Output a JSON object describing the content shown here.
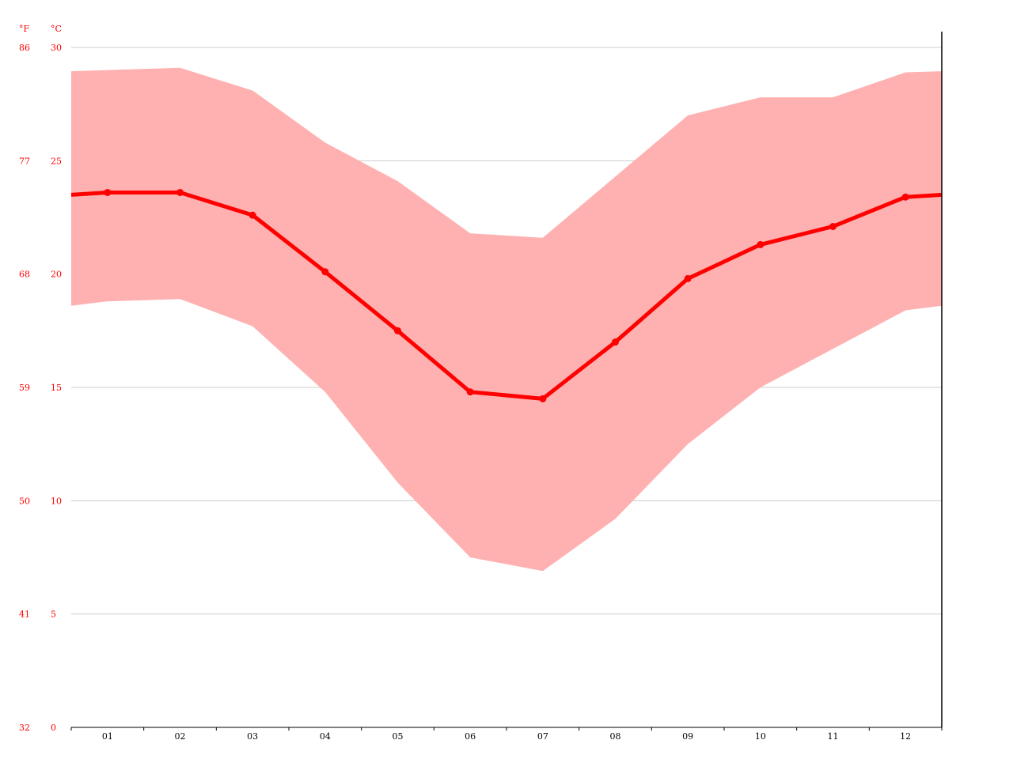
{
  "chart_data": {
    "type": "area",
    "categories": [
      "01",
      "02",
      "03",
      "04",
      "05",
      "06",
      "07",
      "08",
      "09",
      "10",
      "11",
      "12"
    ],
    "series": [
      {
        "values": [
          23.6,
          23.6,
          22.6,
          20.1,
          17.5,
          14.8,
          14.5,
          17.0,
          19.8,
          21.3,
          22.1,
          23.4
        ]
      }
    ],
    "range_max": [
      29.0,
      29.1,
      28.1,
      25.8,
      24.1,
      21.8,
      21.6,
      24.3,
      27.0,
      27.8,
      27.8,
      28.9
    ],
    "range_min": [
      18.8,
      18.9,
      17.7,
      14.8,
      10.8,
      7.5,
      6.9,
      9.2,
      12.5,
      15.0,
      16.7,
      18.4
    ],
    "y_unit_primary": "°C",
    "y_unit_secondary": "°F",
    "y_ticks_c": [
      "0",
      "5",
      "10",
      "15",
      "20",
      "25",
      "30"
    ],
    "y_ticks_f": [
      "32",
      "41",
      "50",
      "59",
      "68",
      "77",
      "86"
    ],
    "ylim": [
      0,
      30
    ],
    "grid": true,
    "colors": {
      "line": "#ff0000",
      "band": "#ffb0b0",
      "axis_labels": "#ff0000",
      "grid": "#cccccc"
    }
  }
}
